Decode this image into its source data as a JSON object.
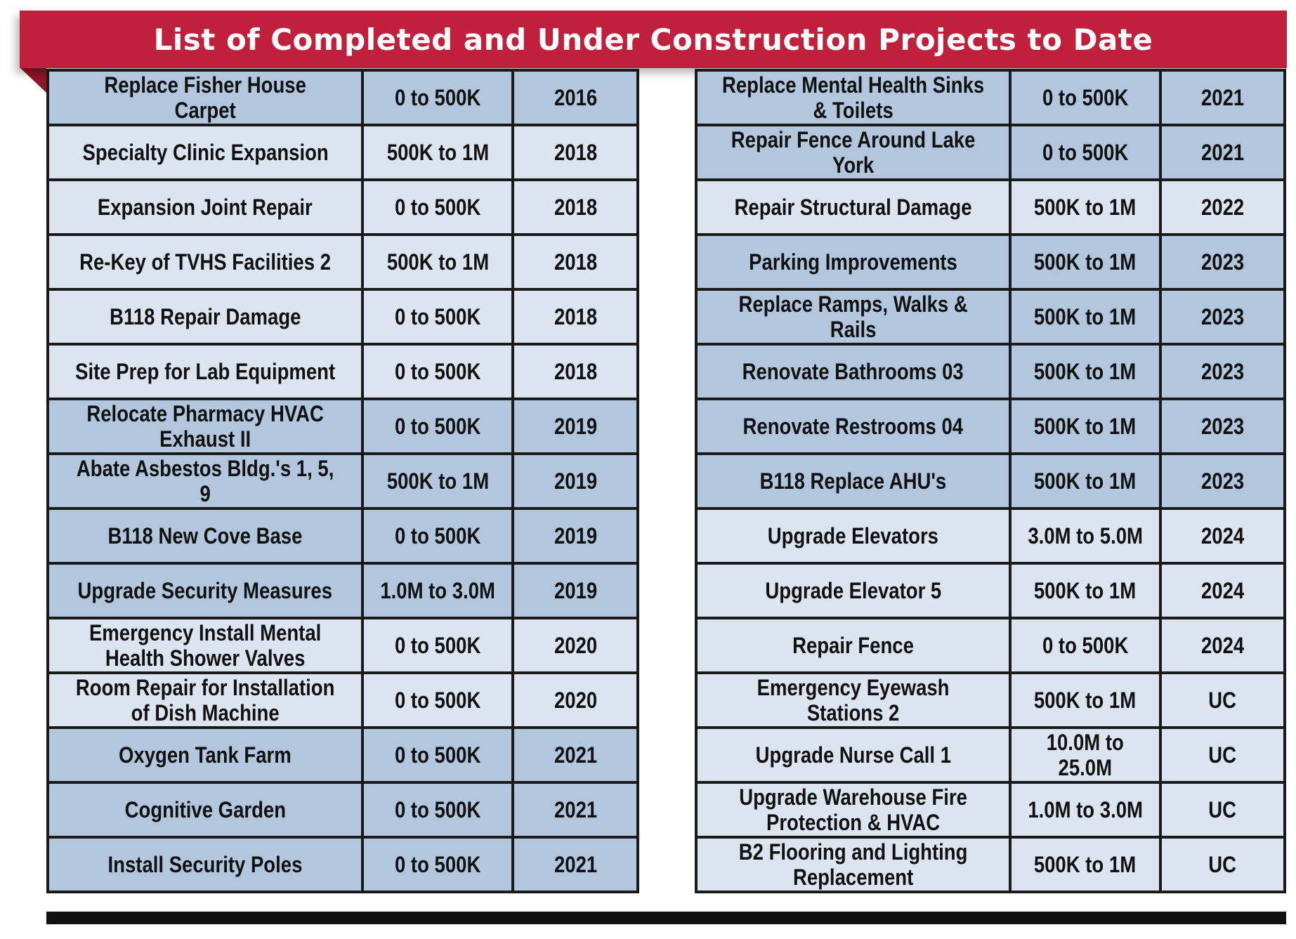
{
  "title": "List of Completed and Under Construction Projects to Date",
  "colors": {
    "banner": "#c0203b",
    "row_light": "#dce5ef",
    "row_dark": "#b2c6de"
  },
  "left_table": [
    {
      "name": "Replace Fisher House Carpet",
      "cost": "0 to 500K",
      "year": "2016",
      "shade": "dark"
    },
    {
      "name": "Specialty Clinic Expansion",
      "cost": "500K to 1M",
      "year": "2018",
      "shade": "light"
    },
    {
      "name": "Expansion Joint Repair",
      "cost": "0 to 500K",
      "year": "2018",
      "shade": "light"
    },
    {
      "name": "Re-Key of TVHS Facilities 2",
      "cost": "500K to 1M",
      "year": "2018",
      "shade": "light"
    },
    {
      "name": "B118 Repair Damage",
      "cost": "0 to 500K",
      "year": "2018",
      "shade": "light"
    },
    {
      "name": "Site Prep for Lab Equipment",
      "cost": "0 to 500K",
      "year": "2018",
      "shade": "light"
    },
    {
      "name": "Relocate Pharmacy HVAC Exhaust II",
      "cost": "0 to 500K",
      "year": "2019",
      "shade": "dark"
    },
    {
      "name": "Abate Asbestos Bldg.'s 1, 5, 9",
      "cost": "500K to 1M",
      "year": "2019",
      "shade": "dark"
    },
    {
      "name": "B118 New Cove Base",
      "cost": "0 to 500K",
      "year": "2019",
      "shade": "dark"
    },
    {
      "name": "Upgrade Security Measures",
      "cost": "1.0M to 3.0M",
      "year": "2019",
      "shade": "dark"
    },
    {
      "name": "Emergency Install Mental Health Shower Valves",
      "cost": "0 to 500K",
      "year": "2020",
      "shade": "light"
    },
    {
      "name": "Room Repair for Installation of Dish Machine",
      "cost": "0 to 500K",
      "year": "2020",
      "shade": "light"
    },
    {
      "name": "Oxygen Tank Farm",
      "cost": "0 to 500K",
      "year": "2021",
      "shade": "dark"
    },
    {
      "name": "Cognitive Garden",
      "cost": "0 to 500K",
      "year": "2021",
      "shade": "dark"
    },
    {
      "name": "Install Security Poles",
      "cost": "0 to 500K",
      "year": "2021",
      "shade": "dark"
    }
  ],
  "right_table": [
    {
      "name": "Replace Mental Health Sinks & Toilets",
      "cost": "0 to 500K",
      "year": "2021",
      "shade": "dark"
    },
    {
      "name": "Repair Fence Around Lake York",
      "cost": "0 to 500K",
      "year": "2021",
      "shade": "dark"
    },
    {
      "name": "Repair Structural Damage",
      "cost": "500K to 1M",
      "year": "2022",
      "shade": "light"
    },
    {
      "name": "Parking Improvements",
      "cost": "500K to 1M",
      "year": "2023",
      "shade": "dark"
    },
    {
      "name": "Replace Ramps, Walks & Rails",
      "cost": "500K to 1M",
      "year": "2023",
      "shade": "dark"
    },
    {
      "name": "Renovate Bathrooms 03",
      "cost": "500K to 1M",
      "year": "2023",
      "shade": "dark"
    },
    {
      "name": "Renovate Restrooms 04",
      "cost": "500K to 1M",
      "year": "2023",
      "shade": "dark"
    },
    {
      "name": "B118 Replace AHU's",
      "cost": "500K to 1M",
      "year": "2023",
      "shade": "dark"
    },
    {
      "name": "Upgrade Elevators",
      "cost": "3.0M to 5.0M",
      "year": "2024",
      "shade": "light"
    },
    {
      "name": "Upgrade Elevator 5",
      "cost": "500K to 1M",
      "year": "2024",
      "shade": "light"
    },
    {
      "name": "Repair Fence",
      "cost": "0 to 500K",
      "year": "2024",
      "shade": "light"
    },
    {
      "name": "Emergency Eyewash Stations 2",
      "cost": "500K to 1M",
      "year": "UC",
      "shade": "light"
    },
    {
      "name": "Upgrade Nurse Call 1",
      "cost": "10.0M to 25.0M",
      "year": "UC",
      "shade": "light"
    },
    {
      "name": "Upgrade Warehouse Fire Protection & HVAC",
      "cost": "1.0M to 3.0M",
      "year": "UC",
      "shade": "light"
    },
    {
      "name": "B2 Flooring and Lighting Replacement",
      "cost": "500K to 1M",
      "year": "UC",
      "shade": "light"
    }
  ]
}
